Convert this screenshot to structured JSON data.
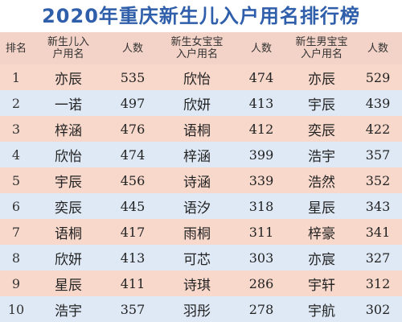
{
  "title": "2020年重庆新生儿入户用名排行榜",
  "headers": {
    "rank": "排名",
    "all_names_line1": "新生儿入",
    "all_names_line2": "户用名",
    "count1": "人数",
    "girl_line1": "新生女宝宝",
    "girl_line2": "入户用名",
    "count2": "人数",
    "boy_line1": "新生男宝宝",
    "boy_line2": "入户用名",
    "count3": "人数"
  },
  "rows": [
    {
      "rank": "1",
      "all": "亦辰",
      "all_n": "535",
      "girl": "欣怡",
      "girl_n": "474",
      "boy": "亦辰",
      "boy_n": "529"
    },
    {
      "rank": "2",
      "all": "一诺",
      "all_n": "497",
      "girl": "欣妍",
      "girl_n": "413",
      "boy": "宇辰",
      "boy_n": "439"
    },
    {
      "rank": "3",
      "all": "梓涵",
      "all_n": "476",
      "girl": "语桐",
      "girl_n": "412",
      "boy": "奕辰",
      "boy_n": "422"
    },
    {
      "rank": "4",
      "all": "欣怡",
      "all_n": "474",
      "girl": "梓涵",
      "girl_n": "399",
      "boy": "浩宇",
      "boy_n": "357"
    },
    {
      "rank": "5",
      "all": "宇辰",
      "all_n": "456",
      "girl": "诗涵",
      "girl_n": "339",
      "boy": "浩然",
      "boy_n": "352"
    },
    {
      "rank": "6",
      "all": "奕辰",
      "all_n": "445",
      "girl": "语汐",
      "girl_n": "318",
      "boy": "星辰",
      "boy_n": "343"
    },
    {
      "rank": "7",
      "all": "语桐",
      "all_n": "417",
      "girl": "雨桐",
      "girl_n": "311",
      "boy": "梓豪",
      "boy_n": "341"
    },
    {
      "rank": "8",
      "all": "欣妍",
      "all_n": "413",
      "girl": "可芯",
      "girl_n": "303",
      "boy": "亦宸",
      "boy_n": "327"
    },
    {
      "rank": "9",
      "all": "星辰",
      "all_n": "411",
      "girl": "诗琪",
      "girl_n": "286",
      "boy": "宇轩",
      "boy_n": "312"
    },
    {
      "rank": "10",
      "all": "浩宇",
      "all_n": "357",
      "girl": "羽彤",
      "girl_n": "278",
      "boy": "宇航",
      "boy_n": "302"
    }
  ],
  "colors": {
    "title": "#2f5eaa",
    "header_bg": "#f3d2c7",
    "row_pink": "#f8d8cb",
    "row_blue": "#dfe9f6"
  }
}
